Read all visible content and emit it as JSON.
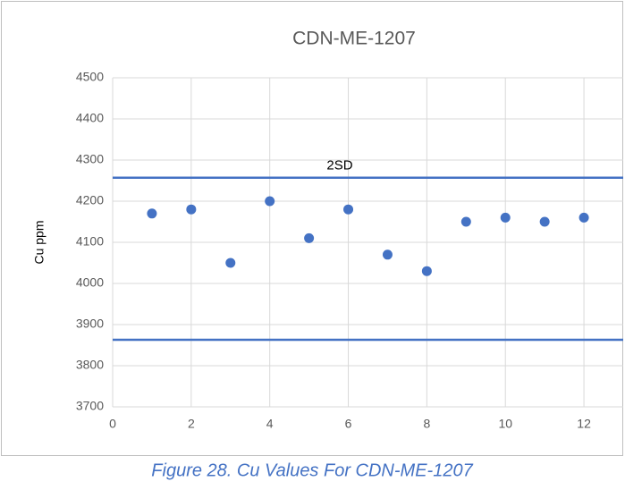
{
  "chart_data": {
    "type": "scatter",
    "title": "CDN-ME-1207",
    "y_label": "Cu ppm",
    "x": [
      1,
      2,
      3,
      4,
      5,
      6,
      7,
      8,
      9,
      10,
      11,
      12
    ],
    "values": [
      4170,
      4180,
      4050,
      4200,
      4110,
      4180,
      4070,
      4030,
      4150,
      4160,
      4150,
      4160
    ],
    "color": "#4472c4",
    "reference_lines": [
      {
        "value": 4257,
        "label": "2SD"
      },
      {
        "value": 3863
      }
    ],
    "xlim": [
      0,
      13
    ],
    "xticks": [
      0,
      2,
      4,
      6,
      8,
      10,
      12
    ],
    "ylim": [
      3700,
      4500
    ],
    "yticks": [
      3700,
      3800,
      3900,
      4000,
      4100,
      4200,
      4300,
      4400,
      4500
    ],
    "grid": true
  },
  "caption": "Figure 28. Cu Values For CDN-ME-1207"
}
